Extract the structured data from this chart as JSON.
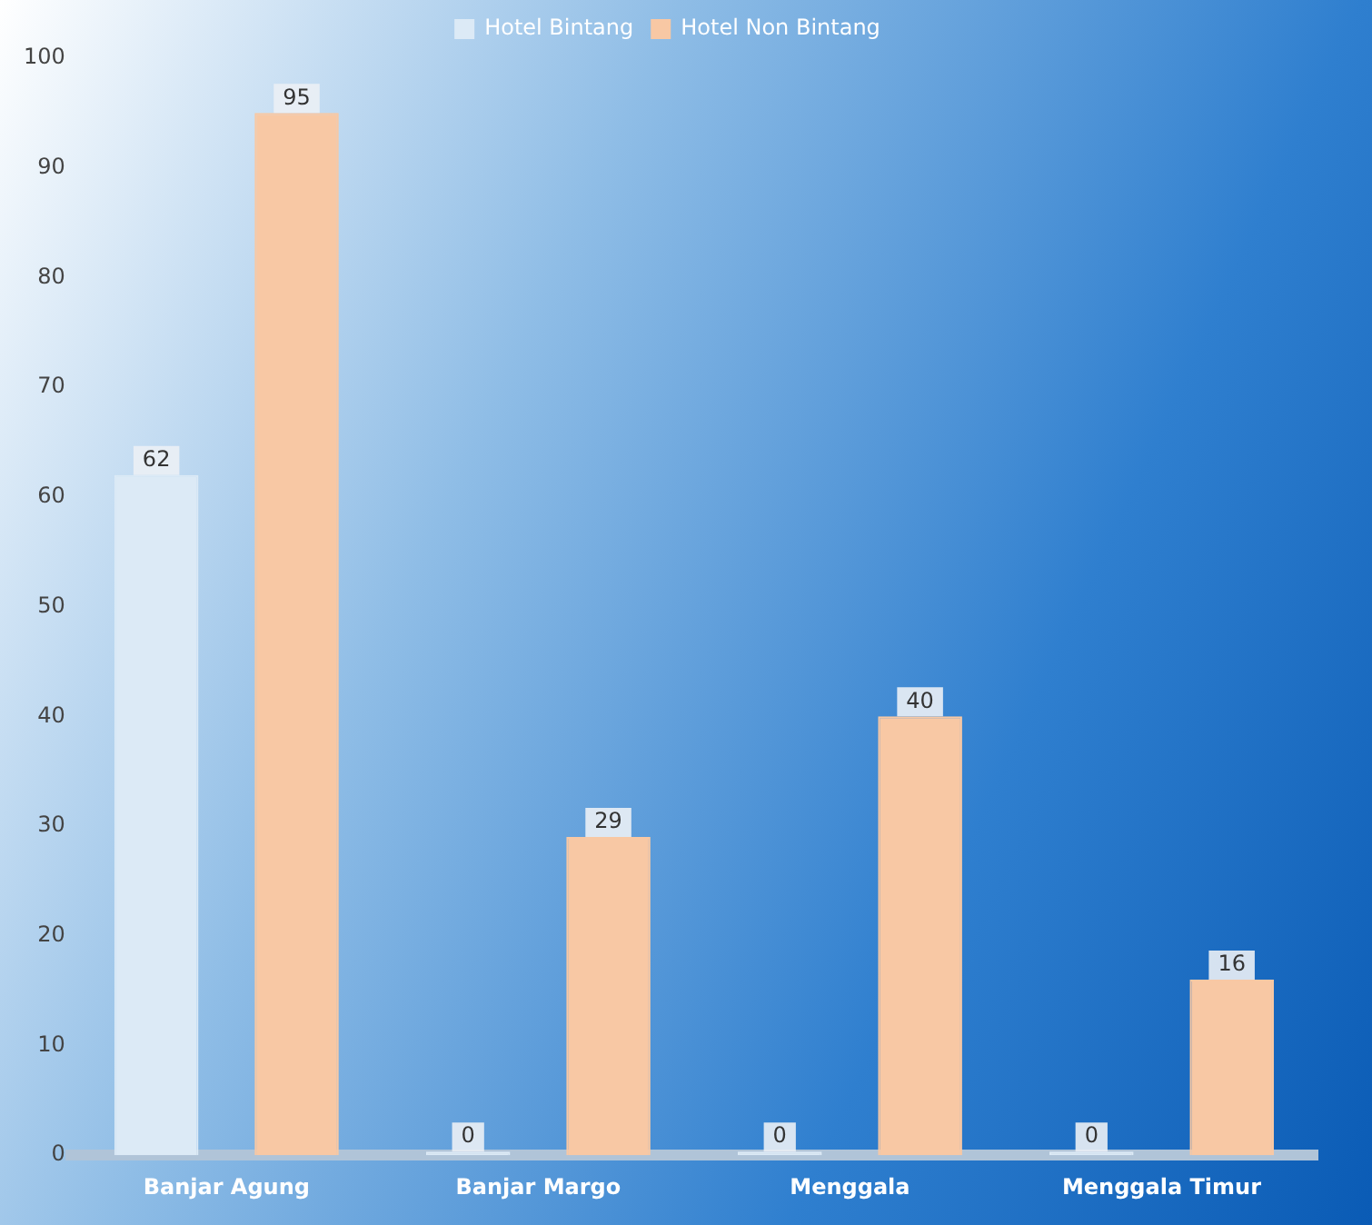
{
  "chart_data": {
    "type": "bar",
    "categories": [
      "Banjar Agung",
      "Banjar Margo",
      "Menggala",
      "Menggala Timur"
    ],
    "series": [
      {
        "name": "Hotel Bintang",
        "color": "#dceaf6",
        "values": [
          62,
          0,
          0,
          0
        ]
      },
      {
        "name": "Hotel Non Bintang",
        "color": "#f8c8a4",
        "values": [
          95,
          29,
          40,
          16
        ]
      }
    ],
    "ylim": [
      0,
      100
    ],
    "yticks": [
      0,
      10,
      20,
      30,
      40,
      50,
      60,
      70,
      80,
      90,
      100
    ],
    "grid": false,
    "legend": "top",
    "data_labels": true
  }
}
